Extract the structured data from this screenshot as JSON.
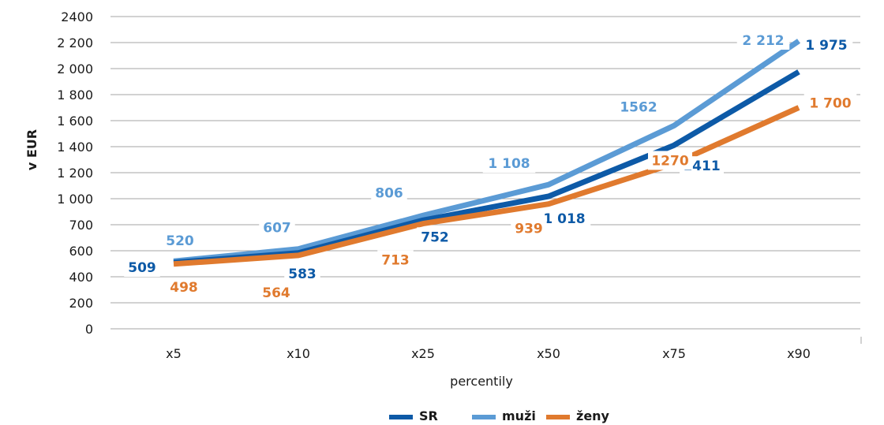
{
  "chart_data": {
    "type": "line",
    "categories": [
      "x5",
      "x10",
      "x25",
      "x50",
      "x75",
      "x90"
    ],
    "y_tick_labels": [
      "0",
      "200",
      "400",
      "600",
      "700",
      "1 000",
      "1 200",
      "1 400",
      "1 600",
      "1 800",
      "2 000",
      "2 200",
      "2400"
    ],
    "xlabel": "percentily",
    "ylabel": "v EUR",
    "ylim": [
      0,
      2400
    ],
    "grid": true,
    "legend_position": "bottom",
    "series": [
      {
        "name": "SR",
        "color": "#0d5aa7",
        "values": [
          509,
          583,
          752,
          1018,
          1411,
          1975
        ],
        "labels": [
          "509",
          "583",
          "752",
          "1 018",
          "1411",
          "1 975"
        ]
      },
      {
        "name": "muži",
        "color": "#5b9bd5",
        "values": [
          520,
          607,
          806,
          1108,
          1562,
          2212
        ],
        "labels": [
          "520",
          "607",
          "806",
          "1 108",
          "1562",
          "2 212"
        ]
      },
      {
        "name": "ženy",
        "color": "#e07a2e",
        "values": [
          498,
          564,
          713,
          939,
          1270,
          1700
        ],
        "labels": [
          "498",
          "564",
          "713",
          "939",
          "1270",
          "1 700"
        ]
      }
    ]
  }
}
